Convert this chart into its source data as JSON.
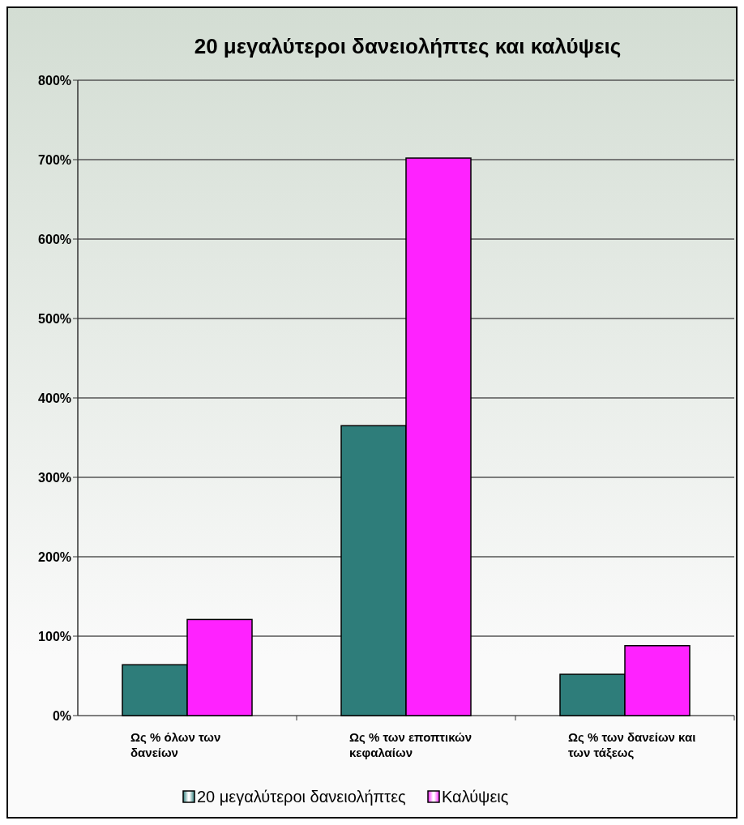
{
  "chart_data": {
    "type": "bar",
    "title": "20 μεγαλύτεροι δανειολήπτες και καλύψεις",
    "categories": [
      "Ως % όλων των δανείων",
      "Ως % των εποπτικών κεφαλαίων",
      "Ως % των δανείων και των τάξεως"
    ],
    "series": [
      {
        "name": "20 μεγαλύτεροι δανειολήπτες",
        "color": "#2e7d7a",
        "values": [
          64,
          365,
          52
        ]
      },
      {
        "name": "Καλύψεις",
        "color": "#ff22ff",
        "values": [
          121,
          702,
          88
        ]
      }
    ],
    "ylim": [
      0,
      800
    ],
    "yticks": [
      {
        "value": 0,
        "label": "0%"
      },
      {
        "value": 100,
        "label": "100%"
      },
      {
        "value": 200,
        "label": "200%"
      },
      {
        "value": 300,
        "label": "300%"
      },
      {
        "value": 400,
        "label": "400%"
      },
      {
        "value": 500,
        "label": "500%"
      },
      {
        "value": 600,
        "label": "600%"
      },
      {
        "value": 700,
        "label": "700%"
      },
      {
        "value": 800,
        "label": "800%"
      }
    ],
    "grid": "y",
    "legend": "bottom"
  }
}
